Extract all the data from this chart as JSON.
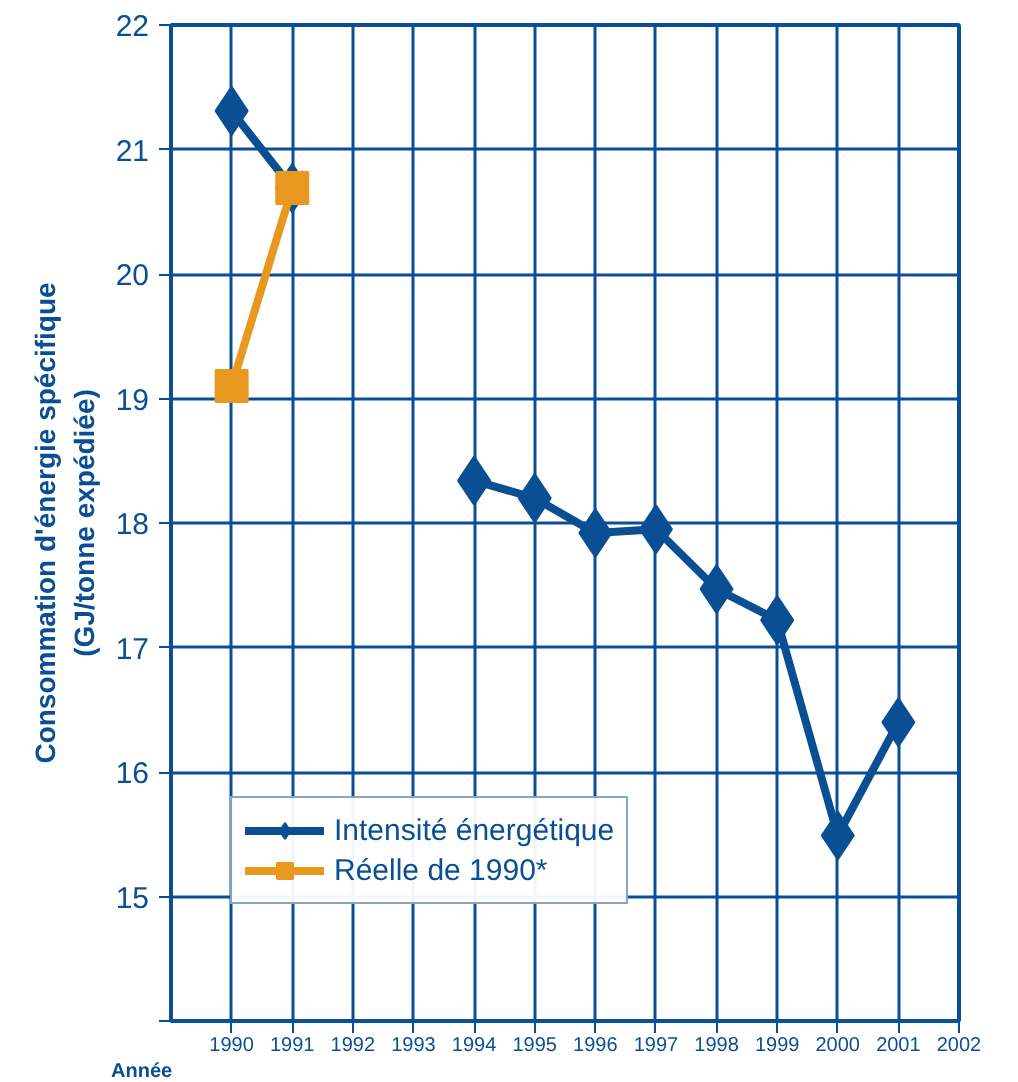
{
  "chart_data": {
    "type": "line",
    "xlabel": "Année",
    "ylabel": "Consommation d'énergie spécifique\n(GJ/tonne expédiée)",
    "x": [
      1990,
      1991,
      1992,
      1993,
      1994,
      1995,
      1996,
      1997,
      1998,
      1999,
      2000,
      2001
    ],
    "series": [
      {
        "name": "Intensité énergétique",
        "color": "#0a4f94",
        "marker": "diamond",
        "values": [
          21.31,
          20.69,
          null,
          null,
          18.34,
          18.2,
          17.92,
          17.95,
          17.47,
          17.22,
          15.49,
          16.4
        ]
      },
      {
        "name": "Réelle de 1990*",
        "color": "#e8981e",
        "marker": "square",
        "values": [
          19.1,
          20.69,
          null,
          null,
          null,
          null,
          null,
          null,
          null,
          null,
          null,
          null
        ]
      }
    ],
    "xlim": [
      1989,
      2002
    ],
    "xticks": [
      1990,
      1991,
      1992,
      1993,
      1994,
      1995,
      1996,
      1997,
      1998,
      1999,
      2000,
      2001,
      2002
    ],
    "ylim": [
      14,
      22
    ],
    "yticks": [
      {
        "value": 14,
        "label": null
      },
      15,
      16,
      17,
      18,
      19,
      20,
      21,
      22
    ],
    "grid": true,
    "legend": "bottom left",
    "line_style": "solid"
  }
}
